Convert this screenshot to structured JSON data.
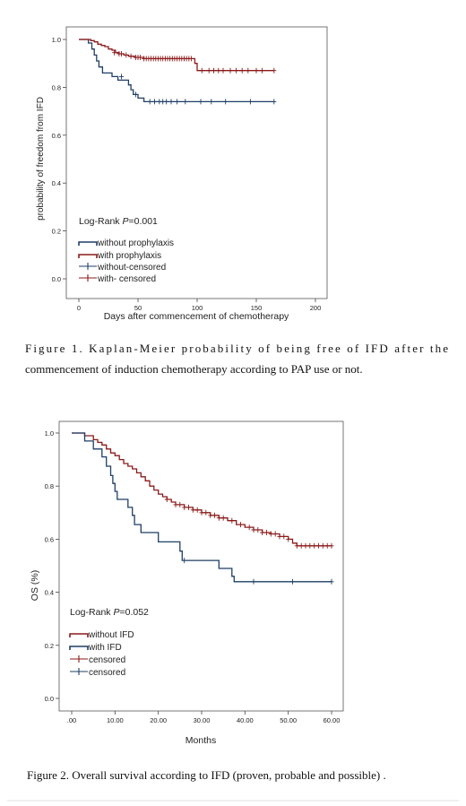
{
  "chart_data": [
    {
      "type": "line",
      "subtype": "kaplan-meier",
      "title": "",
      "xlabel": "Days after commencement of chemotherapy",
      "ylabel": "probability of freedom from IFD",
      "xlim": [
        0,
        200
      ],
      "ylim": [
        0.0,
        1.0
      ],
      "x_ticks": [
        0,
        50,
        100,
        150,
        200
      ],
      "x_tick_labels": [
        "0",
        "50",
        "100",
        "150",
        "200"
      ],
      "y_ticks": [
        0.0,
        0.2,
        0.4,
        0.6,
        0.8,
        1.0
      ],
      "y_tick_labels": [
        "0.0",
        "0.2",
        "0.4",
        "0.6",
        "0.8",
        "1.0"
      ],
      "annotation": {
        "prefix": "Log-Rank ",
        "italic": "P",
        "suffix": "=0.001"
      },
      "legend_position": "bottom-left",
      "legend": [
        {
          "label": "without prophylaxis",
          "kind": "step",
          "color": "#1f3f66"
        },
        {
          "label": "with prophylaxis",
          "kind": "step",
          "color": "#8b1a1a"
        },
        {
          "label": "without-censored",
          "kind": "cross",
          "color": "#1f3f66"
        },
        {
          "label": "with- censored",
          "kind": "cross",
          "color": "#8b1a1a"
        }
      ],
      "series": [
        {
          "name": "without prophylaxis",
          "color": "#1f3f66",
          "steps": [
            [
              0,
              1.0
            ],
            [
              8,
              0.985
            ],
            [
              11,
              0.96
            ],
            [
              13,
              0.935
            ],
            [
              15,
              0.91
            ],
            [
              17,
              0.885
            ],
            [
              20,
              0.86
            ],
            [
              28,
              0.845
            ],
            [
              33,
              0.83
            ],
            [
              42,
              0.81
            ],
            [
              44,
              0.79
            ],
            [
              46,
              0.77
            ],
            [
              50,
              0.755
            ],
            [
              55,
              0.74
            ],
            [
              165,
              0.74
            ]
          ],
          "censored": [
            [
              36,
              0.845
            ],
            [
              48,
              0.77
            ],
            [
              60,
              0.74
            ],
            [
              64,
              0.74
            ],
            [
              68,
              0.74
            ],
            [
              71,
              0.74
            ],
            [
              74,
              0.74
            ],
            [
              78,
              0.74
            ],
            [
              83,
              0.74
            ],
            [
              90,
              0.74
            ],
            [
              103,
              0.74
            ],
            [
              112,
              0.74
            ],
            [
              124,
              0.74
            ],
            [
              145,
              0.74
            ],
            [
              165,
              0.74
            ]
          ]
        },
        {
          "name": "with prophylaxis",
          "color": "#8b1a1a",
          "steps": [
            [
              0,
              1.0
            ],
            [
              10,
              0.995
            ],
            [
              13,
              0.99
            ],
            [
              16,
              0.98
            ],
            [
              19,
              0.975
            ],
            [
              22,
              0.97
            ],
            [
              25,
              0.96
            ],
            [
              28,
              0.955
            ],
            [
              31,
              0.945
            ],
            [
              34,
              0.94
            ],
            [
              38,
              0.935
            ],
            [
              42,
              0.93
            ],
            [
              47,
              0.925
            ],
            [
              55,
              0.92
            ],
            [
              98,
              0.9
            ],
            [
              100,
              0.87
            ],
            [
              165,
              0.87
            ]
          ],
          "censored": [
            [
              30,
              0.945
            ],
            [
              34,
              0.94
            ],
            [
              36,
              0.94
            ],
            [
              40,
              0.935
            ],
            [
              44,
              0.93
            ],
            [
              48,
              0.925
            ],
            [
              50,
              0.925
            ],
            [
              52,
              0.925
            ],
            [
              55,
              0.92
            ],
            [
              57,
              0.92
            ],
            [
              59,
              0.92
            ],
            [
              61,
              0.92
            ],
            [
              63,
              0.92
            ],
            [
              65,
              0.92
            ],
            [
              67,
              0.92
            ],
            [
              69,
              0.92
            ],
            [
              71,
              0.92
            ],
            [
              73,
              0.92
            ],
            [
              75,
              0.92
            ],
            [
              77,
              0.92
            ],
            [
              79,
              0.92
            ],
            [
              81,
              0.92
            ],
            [
              83,
              0.92
            ],
            [
              85,
              0.92
            ],
            [
              87,
              0.92
            ],
            [
              89,
              0.92
            ],
            [
              91,
              0.92
            ],
            [
              93,
              0.92
            ],
            [
              95,
              0.92
            ],
            [
              104,
              0.87
            ],
            [
              110,
              0.87
            ],
            [
              114,
              0.87
            ],
            [
              118,
              0.87
            ],
            [
              122,
              0.87
            ],
            [
              128,
              0.87
            ],
            [
              133,
              0.87
            ],
            [
              138,
              0.87
            ],
            [
              143,
              0.87
            ],
            [
              150,
              0.87
            ],
            [
              155,
              0.87
            ],
            [
              165,
              0.87
            ]
          ]
        }
      ],
      "caption": "Figure 1. Kaplan-Meier probability of being free of IFD after the commencement of induction chemotherapy according to PAP use or not."
    },
    {
      "type": "line",
      "subtype": "kaplan-meier",
      "title": "",
      "xlabel": "Months",
      "ylabel": "OS (%)",
      "xlim": [
        0,
        60
      ],
      "ylim": [
        0.0,
        1.0
      ],
      "x_ticks": [
        0,
        10,
        20,
        30,
        40,
        50,
        60
      ],
      "x_tick_labels": [
        ".00",
        "10.00",
        "20.00",
        "30.00",
        "40.00",
        "50.00",
        "60.00"
      ],
      "y_ticks": [
        0.0,
        0.2,
        0.4,
        0.6,
        0.8,
        1.0
      ],
      "y_tick_labels": [
        "0.0",
        "0.2",
        "0.4",
        "0.6",
        "0.8",
        "1.0"
      ],
      "annotation": {
        "prefix": "Log-Rank ",
        "italic": "P",
        "suffix": "=0.052"
      },
      "legend_position": "bottom-left",
      "legend": [
        {
          "label": "without IFD",
          "kind": "step",
          "color": "#8b1a1a"
        },
        {
          "label": "with IFD",
          "kind": "step",
          "color": "#1f3f66"
        },
        {
          "label": "censored",
          "kind": "cross",
          "color": "#8b1a1a"
        },
        {
          "label": "censored",
          "kind": "cross",
          "color": "#1f3f66"
        }
      ],
      "series": [
        {
          "name": "without IFD",
          "color": "#8b1a1a",
          "steps": [
            [
              0,
              1.0
            ],
            [
              3,
              0.99
            ],
            [
              5,
              0.975
            ],
            [
              6,
              0.965
            ],
            [
              7,
              0.955
            ],
            [
              8,
              0.94
            ],
            [
              9,
              0.925
            ],
            [
              10,
              0.915
            ],
            [
              11,
              0.9
            ],
            [
              12,
              0.885
            ],
            [
              13,
              0.875
            ],
            [
              14,
              0.865
            ],
            [
              15,
              0.85
            ],
            [
              16,
              0.835
            ],
            [
              17,
              0.82
            ],
            [
              18,
              0.8
            ],
            [
              19,
              0.785
            ],
            [
              20,
              0.77
            ],
            [
              21,
              0.76
            ],
            [
              22,
              0.75
            ],
            [
              23,
              0.74
            ],
            [
              24,
              0.73
            ],
            [
              26,
              0.72
            ],
            [
              28,
              0.71
            ],
            [
              30,
              0.7
            ],
            [
              32,
              0.69
            ],
            [
              34,
              0.68
            ],
            [
              36,
              0.67
            ],
            [
              38,
              0.655
            ],
            [
              40,
              0.645
            ],
            [
              42,
              0.635
            ],
            [
              44,
              0.625
            ],
            [
              46,
              0.62
            ],
            [
              48,
              0.61
            ],
            [
              50,
              0.6
            ],
            [
              51,
              0.585
            ],
            [
              52,
              0.575
            ],
            [
              60,
              0.575
            ]
          ],
          "censored": [
            [
              22,
              0.75
            ],
            [
              24,
              0.73
            ],
            [
              25,
              0.73
            ],
            [
              26,
              0.72
            ],
            [
              27,
              0.72
            ],
            [
              28,
              0.71
            ],
            [
              29,
              0.71
            ],
            [
              30,
              0.7
            ],
            [
              31,
              0.7
            ],
            [
              32,
              0.69
            ],
            [
              33,
              0.69
            ],
            [
              34,
              0.68
            ],
            [
              35,
              0.68
            ],
            [
              37,
              0.67
            ],
            [
              39,
              0.655
            ],
            [
              41,
              0.645
            ],
            [
              42,
              0.635
            ],
            [
              43,
              0.635
            ],
            [
              44,
              0.625
            ],
            [
              45,
              0.625
            ],
            [
              46,
              0.62
            ],
            [
              47,
              0.62
            ],
            [
              48,
              0.61
            ],
            [
              49,
              0.61
            ],
            [
              50,
              0.6
            ],
            [
              52,
              0.575
            ],
            [
              53,
              0.575
            ],
            [
              54,
              0.575
            ],
            [
              55,
              0.575
            ],
            [
              56,
              0.575
            ],
            [
              57,
              0.575
            ],
            [
              58,
              0.575
            ],
            [
              59,
              0.575
            ],
            [
              60,
              0.575
            ]
          ]
        },
        {
          "name": "with IFD",
          "color": "#1f3f66",
          "steps": [
            [
              0,
              1.0
            ],
            [
              3,
              0.97
            ],
            [
              5,
              0.94
            ],
            [
              7,
              0.91
            ],
            [
              8,
              0.875
            ],
            [
              9,
              0.84
            ],
            [
              9.5,
              0.81
            ],
            [
              10,
              0.78
            ],
            [
              10.5,
              0.75
            ],
            [
              13,
              0.72
            ],
            [
              14,
              0.69
            ],
            [
              14.5,
              0.655
            ],
            [
              16,
              0.625
            ],
            [
              20,
              0.59
            ],
            [
              25,
              0.555
            ],
            [
              25.5,
              0.52
            ],
            [
              34,
              0.49
            ],
            [
              37,
              0.46
            ],
            [
              37.5,
              0.44
            ],
            [
              60,
              0.44
            ]
          ],
          "censored": [
            [
              26,
              0.52
            ],
            [
              42,
              0.44
            ],
            [
              51,
              0.44
            ],
            [
              60,
              0.44
            ]
          ]
        }
      ],
      "caption": "Figure 2. Overall survival according to IFD (proven, probable and possible) ."
    }
  ]
}
